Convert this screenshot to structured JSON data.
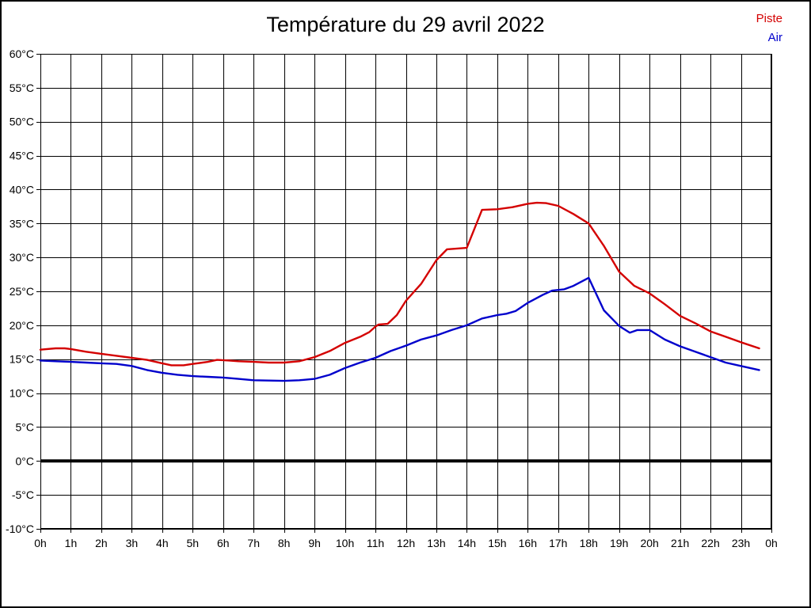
{
  "chart_data": {
    "type": "line",
    "title": "Température du 29 avril 2022",
    "xlabel": "",
    "ylabel": "",
    "xlim": [
      0,
      24
    ],
    "ylim": [
      -10,
      60
    ],
    "grid": true,
    "x_tick_labels": [
      "0h",
      "1h",
      "2h",
      "3h",
      "4h",
      "5h",
      "6h",
      "7h",
      "8h",
      "9h",
      "10h",
      "11h",
      "12h",
      "13h",
      "14h",
      "15h",
      "16h",
      "17h",
      "18h",
      "19h",
      "20h",
      "21h",
      "22h",
      "23h",
      "0h"
    ],
    "y_tick_values": [
      60,
      55,
      50,
      45,
      40,
      35,
      30,
      25,
      20,
      15,
      10,
      5,
      0,
      -5,
      -10
    ],
    "y_tick_labels": [
      "60°C",
      "55°C",
      "50°C",
      "45°C",
      "40°C",
      "35°C",
      "30°C",
      "25°C",
      "20°C",
      "15°C",
      "10°C",
      "5°C",
      "0°C",
      "-5°C",
      "-10°C"
    ],
    "zero_line": {
      "value": 0,
      "width": 4
    },
    "legend_position": "top-right",
    "legend": [
      {
        "name": "Piste",
        "color": "#d40000"
      },
      {
        "name": "Air",
        "color": "#0000cc"
      }
    ],
    "series": [
      {
        "name": "Piste",
        "color": "#d40000",
        "points": [
          [
            0,
            16.4
          ],
          [
            0.5,
            16.6
          ],
          [
            0.8,
            16.6
          ],
          [
            1,
            16.5
          ],
          [
            1.5,
            16.1
          ],
          [
            2,
            15.8
          ],
          [
            2.5,
            15.5
          ],
          [
            3,
            15.2
          ],
          [
            3.5,
            14.9
          ],
          [
            4,
            14.4
          ],
          [
            4.3,
            14.1
          ],
          [
            4.7,
            14.1
          ],
          [
            5,
            14.3
          ],
          [
            5.5,
            14.6
          ],
          [
            5.8,
            14.9
          ],
          [
            6.2,
            14.8
          ],
          [
            6.5,
            14.7
          ],
          [
            7,
            14.6
          ],
          [
            7.5,
            14.5
          ],
          [
            8,
            14.5
          ],
          [
            8.5,
            14.7
          ],
          [
            9,
            15.3
          ],
          [
            9.5,
            16.2
          ],
          [
            10,
            17.4
          ],
          [
            10.5,
            18.3
          ],
          [
            10.8,
            19.0
          ],
          [
            11,
            19.8
          ],
          [
            11.1,
            20.1
          ],
          [
            11.4,
            20.2
          ],
          [
            11.7,
            21.5
          ],
          [
            12,
            23.6
          ],
          [
            12.5,
            26.1
          ],
          [
            13,
            29.6
          ],
          [
            13.35,
            31.2
          ],
          [
            14.0,
            31.4
          ],
          [
            14.5,
            37.0
          ],
          [
            15,
            37.1
          ],
          [
            15.5,
            37.4
          ],
          [
            16,
            37.9
          ],
          [
            16.3,
            38.05
          ],
          [
            16.6,
            38.0
          ],
          [
            17,
            37.6
          ],
          [
            17.5,
            36.4
          ],
          [
            18,
            35.0
          ],
          [
            18.5,
            31.7
          ],
          [
            19,
            27.9
          ],
          [
            19.5,
            25.8
          ],
          [
            20,
            24.7
          ],
          [
            20.5,
            23.1
          ],
          [
            21,
            21.4
          ],
          [
            21.5,
            20.3
          ],
          [
            22,
            19.1
          ],
          [
            22.5,
            18.3
          ],
          [
            23,
            17.5
          ],
          [
            23.6,
            16.6
          ]
        ]
      },
      {
        "name": "Air",
        "color": "#0000cc",
        "points": [
          [
            0,
            14.8
          ],
          [
            0.5,
            14.7
          ],
          [
            1,
            14.6
          ],
          [
            1.5,
            14.5
          ],
          [
            2,
            14.4
          ],
          [
            2.5,
            14.3
          ],
          [
            3,
            14.0
          ],
          [
            3.5,
            13.4
          ],
          [
            4,
            13.0
          ],
          [
            4.5,
            12.7
          ],
          [
            5,
            12.5
          ],
          [
            5.5,
            12.4
          ],
          [
            6,
            12.3
          ],
          [
            6.5,
            12.1
          ],
          [
            7,
            11.9
          ],
          [
            7.5,
            11.85
          ],
          [
            8,
            11.8
          ],
          [
            8.5,
            11.9
          ],
          [
            9,
            12.1
          ],
          [
            9.5,
            12.7
          ],
          [
            10,
            13.7
          ],
          [
            10.5,
            14.5
          ],
          [
            11,
            15.2
          ],
          [
            11.5,
            16.2
          ],
          [
            12,
            17.0
          ],
          [
            12.5,
            17.9
          ],
          [
            13,
            18.5
          ],
          [
            13.5,
            19.3
          ],
          [
            14,
            20.0
          ],
          [
            14.5,
            21.0
          ],
          [
            15,
            21.5
          ],
          [
            15.3,
            21.7
          ],
          [
            15.6,
            22.1
          ],
          [
            16,
            23.3
          ],
          [
            16.5,
            24.5
          ],
          [
            16.8,
            25.1
          ],
          [
            17.2,
            25.3
          ],
          [
            17.5,
            25.8
          ],
          [
            18,
            27.0
          ],
          [
            18.5,
            22.2
          ],
          [
            19,
            19.9
          ],
          [
            19.35,
            18.9
          ],
          [
            19.6,
            19.3
          ],
          [
            20,
            19.3
          ],
          [
            20.5,
            17.9
          ],
          [
            21,
            16.9
          ],
          [
            21.5,
            16.1
          ],
          [
            22,
            15.3
          ],
          [
            22.5,
            14.5
          ],
          [
            23,
            14.0
          ],
          [
            23.6,
            13.4
          ]
        ]
      }
    ]
  }
}
